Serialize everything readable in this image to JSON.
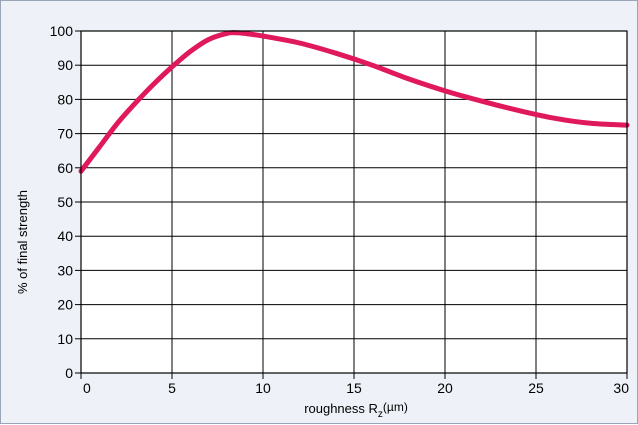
{
  "chart_data": {
    "type": "line",
    "title": "",
    "xlabel": "roughness R",
    "xlabel_subscript": "z",
    "xlabel_unit": "(µm)",
    "ylabel": "% of final strength",
    "xlim": [
      0,
      30
    ],
    "ylim": [
      0,
      100
    ],
    "x_ticks": [
      0,
      5,
      10,
      15,
      20,
      25,
      30
    ],
    "y_ticks": [
      0,
      10,
      20,
      30,
      40,
      50,
      60,
      70,
      80,
      90,
      100
    ],
    "grid": true,
    "legend": "none",
    "series_color": "#e0185c",
    "series": [
      {
        "x": [
          0,
          1,
          2,
          3,
          4,
          5,
          6,
          7,
          8,
          8.5,
          9,
          10,
          12,
          14,
          16,
          18,
          20,
          22,
          24,
          26,
          28,
          30
        ],
        "y": [
          59,
          66,
          73,
          79,
          84.5,
          89.5,
          94,
          97.5,
          99.3,
          99.5,
          99.3,
          98.5,
          96.5,
          93.5,
          90,
          86,
          82.5,
          79.5,
          76.8,
          74.5,
          73,
          72.5
        ]
      }
    ]
  }
}
